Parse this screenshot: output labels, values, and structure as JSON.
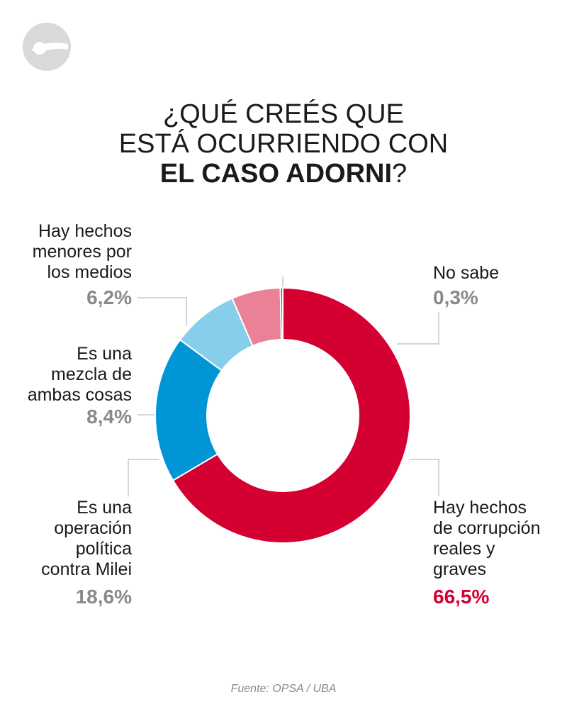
{
  "title": {
    "line1": "¿QUÉ CREÉS QUE",
    "line2": "ESTÁ OCURRIENDO CON",
    "line3_bold": "EL CASO ADORNI",
    "line3_end": "?"
  },
  "colors": {
    "red": "#d40032",
    "pink": "#ea8197",
    "light_blue": "#87ceeb",
    "blue": "#0096d6",
    "dark": "#555555",
    "grey_text": "#8a8a8a",
    "leader": "#c8c8c8"
  },
  "chart_data": {
    "type": "pie",
    "variant": "donut",
    "slices": [
      {
        "label": "Hay hechos de corrupción reales y graves",
        "value": 66.5,
        "display": "66,5%",
        "color": "#d40032"
      },
      {
        "label": "Es una operación política contra Milei",
        "value": 18.6,
        "display": "18,6%",
        "color": "#0096d6"
      },
      {
        "label": "Es una mezcla de ambas cosas",
        "value": 8.4,
        "display": "8,4%",
        "color": "#87ceeb"
      },
      {
        "label": "Hay hechos menores por los medios",
        "value": 6.2,
        "display": "6,2%",
        "color": "#ea8197"
      },
      {
        "label": "No sabe",
        "value": 0.3,
        "display": "0,3%",
        "color": "#555555"
      }
    ]
  },
  "labels": {
    "corrupcion": {
      "text": "Hay hechos\nde corrupción\nreales y\ngraves",
      "pct": "66,5%"
    },
    "operacion": {
      "text": "Es una\noperación\npolítica\ncontra Milei",
      "pct": "18,6%"
    },
    "mezcla": {
      "text": "Es una\nmezcla de\nambas cosas",
      "pct": "8,4%"
    },
    "menores": {
      "text": "Hay hechos\nmenores por\nlos medios",
      "pct": "6,2%"
    },
    "nosabe": {
      "text": "No sabe",
      "pct": "0,3%"
    }
  },
  "source": "Fuente: OPSA / UBA"
}
